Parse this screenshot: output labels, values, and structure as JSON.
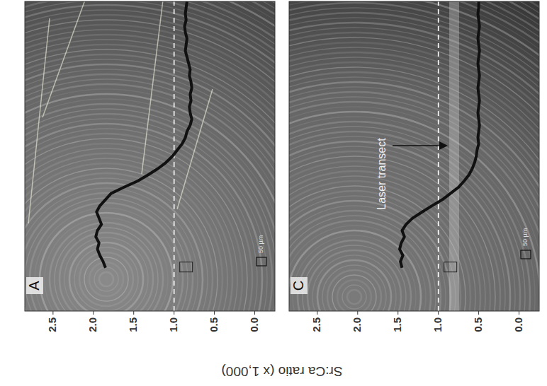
{
  "chart_data": [
    {
      "type": "line",
      "title": "A",
      "ylabel": "Sr:Ca ratio (x 1,000)",
      "color": "#111111",
      "x": [
        14,
        16,
        18,
        20,
        22,
        24,
        26,
        28,
        30,
        32,
        34,
        36,
        38,
        40,
        42,
        44,
        46,
        48,
        50,
        52,
        54,
        56,
        58,
        60,
        62,
        64,
        66,
        68,
        70,
        72,
        74,
        76,
        78,
        80,
        82,
        84,
        86,
        88,
        90,
        92,
        94,
        96,
        98,
        100
      ],
      "values": [
        1.85,
        1.88,
        1.92,
        1.95,
        1.93,
        1.97,
        1.95,
        1.9,
        1.93,
        1.96,
        1.92,
        1.85,
        1.78,
        1.62,
        1.45,
        1.32,
        1.2,
        1.1,
        1.02,
        0.96,
        0.9,
        0.86,
        0.84,
        0.8,
        0.78,
        0.8,
        0.81,
        0.79,
        0.8,
        0.78,
        0.79,
        0.81,
        0.8,
        0.82,
        0.84,
        0.86,
        0.85,
        0.84,
        0.86,
        0.87,
        0.85,
        0.86,
        0.85,
        0.84
      ],
      "xlim": [
        0,
        100
      ],
      "ylim": [
        -0.25,
        2.85
      ],
      "yticks": [
        {
          "value": 0,
          "label": "0.0"
        },
        0.5,
        {
          "value": 1,
          "label": "1.0"
        },
        1.5,
        {
          "value": 2,
          "label": "2.0"
        },
        2.5
      ],
      "hline": 1.0,
      "scale_bar": "50 µm",
      "grid": false,
      "tick_labels": "y"
    },
    {
      "type": "line",
      "title": "C",
      "color": "#111111",
      "x": [
        14,
        16,
        18,
        20,
        22,
        24,
        26,
        28,
        30,
        32,
        34,
        36,
        38,
        40,
        42,
        44,
        46,
        48,
        50,
        52,
        54,
        56,
        58,
        60,
        62,
        64,
        66,
        68,
        70,
        72,
        74,
        76,
        78,
        80,
        82,
        84,
        86,
        88,
        90,
        92,
        94,
        96,
        98,
        100
      ],
      "values": [
        1.45,
        1.47,
        1.44,
        1.48,
        1.46,
        1.42,
        1.45,
        1.4,
        1.32,
        1.2,
        1.08,
        0.95,
        0.85,
        0.75,
        0.68,
        0.62,
        0.58,
        0.55,
        0.53,
        0.52,
        0.5,
        0.51,
        0.5,
        0.49,
        0.5,
        0.51,
        0.5,
        0.49,
        0.5,
        0.51,
        0.5,
        0.49,
        0.5,
        0.51,
        0.5,
        0.49,
        0.5,
        0.51,
        0.5,
        0.49,
        0.5,
        0.51,
        0.5,
        0.5
      ],
      "xlim": [
        0,
        100
      ],
      "ylim": [
        -0.25,
        2.85
      ],
      "yticks": [
        {
          "value": 0,
          "label": "0.0"
        },
        0.5,
        {
          "value": 1,
          "label": "1.0"
        },
        1.5,
        {
          "value": 2,
          "label": "2.0"
        },
        2.5
      ],
      "hline": 1.0,
      "scale_bar": "50 µm",
      "annotation": "Laser transect",
      "grid": false,
      "tick_labels": "y"
    }
  ]
}
